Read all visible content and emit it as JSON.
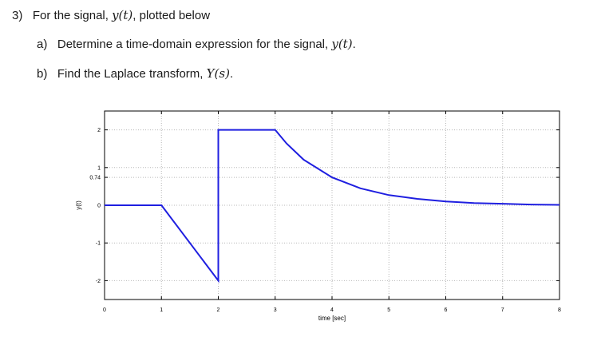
{
  "question": {
    "number": "3)",
    "stem_text": "For the signal, ",
    "stem_math": "y(t)",
    "stem_tail": ", plotted below",
    "parts": [
      {
        "label": "a)",
        "text": "Determine a time-domain expression for the signal, ",
        "math": "y(t)",
        "tail": "."
      },
      {
        "label": "b)",
        "text": "Find the Laplace transform, ",
        "math": "Y(s)",
        "tail": "."
      }
    ]
  },
  "chart_data": {
    "type": "line",
    "xlabel": "time  [sec]",
    "ylabel": "y(t)",
    "xlim": [
      0,
      8
    ],
    "ylim": [
      -2.5,
      2.5
    ],
    "xticks": [
      "0",
      "1",
      "2",
      "3",
      "4",
      "5",
      "6",
      "7",
      "8"
    ],
    "yticks": [
      {
        "value": 2,
        "label": "2"
      },
      {
        "value": 1,
        "label": "1"
      },
      {
        "value": 0.74,
        "label": "0.74"
      },
      {
        "value": 0,
        "label": "0"
      },
      {
        "value": -1,
        "label": "-1"
      },
      {
        "value": -2,
        "label": "-2"
      }
    ],
    "grid": true,
    "line_color": "#1f1fe0",
    "series": [
      {
        "x": [
          0,
          1,
          2,
          2,
          3,
          3.2,
          3.5,
          4,
          4.5,
          5,
          5.5,
          6,
          6.5,
          7,
          7.5,
          8
        ],
        "y": [
          0,
          0,
          -2,
          2,
          2,
          1.64,
          1.21,
          0.74,
          0.45,
          0.27,
          0.17,
          0.1,
          0.06,
          0.04,
          0.02,
          0.01
        ]
      }
    ]
  }
}
